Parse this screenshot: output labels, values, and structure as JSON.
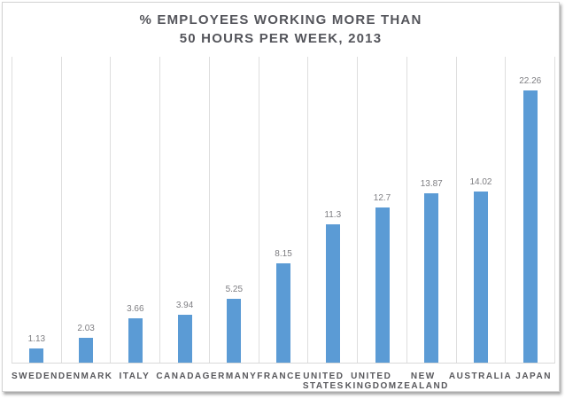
{
  "chart_data": {
    "type": "bar",
    "title": "% EMPLOYEES WORKING MORE THAN 50 HOURS PER WEEK, 2013",
    "title_line1": "% EMPLOYEES WORKING MORE THAN",
    "title_line2": "50 HOURS PER WEEK, 2013",
    "categories": [
      "SWEDEN",
      "DENMARK",
      "ITALY",
      "CANADA",
      "GERMANY",
      "FRANCE",
      "UNITED STATES",
      "UNITED KINGDOM",
      "NEW ZEALAND",
      "AUSTRALIA",
      "JAPAN"
    ],
    "values": [
      1.13,
      2.03,
      3.66,
      3.94,
      5.25,
      8.15,
      11.3,
      12.7,
      13.87,
      14.02,
      22.26
    ],
    "value_labels": [
      "1.13",
      "2.03",
      "3.66",
      "3.94",
      "5.25",
      "8.15",
      "11.3",
      "12.7",
      "13.87",
      "14.02",
      "22.26"
    ],
    "xlabel": "",
    "ylabel": "",
    "ylim": [
      0,
      25
    ],
    "gridlines": "vertical-category-separators",
    "legend": "none",
    "data_labels_position": "above-bar"
  },
  "colors": {
    "bar": "#5b9bd5",
    "gridline": "#dedede",
    "axis_line": "#d9d9d9",
    "title_text": "#54555b",
    "value_label_text": "#7e7e82",
    "category_label_text": "#58585c",
    "frame_border": "#d2d2d2"
  }
}
